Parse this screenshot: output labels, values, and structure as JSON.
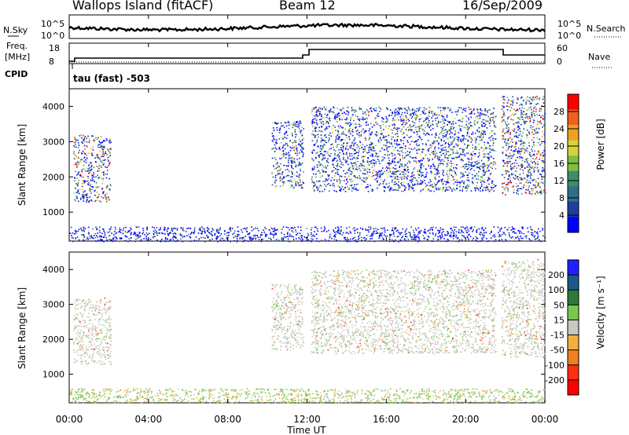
{
  "header": {
    "station": "Wallops Island (fitACF)",
    "beam": "Beam 12",
    "date": "16/Sep/2009"
  },
  "noise_panel": {
    "left_label": "N.Sky",
    "right_label": "N.Search",
    "y_ticks": [
      "10^5",
      "10^0"
    ],
    "right_ticks": [
      "10^5",
      "10^0"
    ]
  },
  "freq_panel": {
    "left_label": "Freq.",
    "left_unit": "[MHz]",
    "left_ticks": [
      "18",
      "8"
    ],
    "right_label": "Nave",
    "right_ticks": [
      "60",
      "0"
    ],
    "cpid_label": "CPID",
    "program": "tau (fast) -503"
  },
  "colors": {
    "power_scale": [
      "#0000ff",
      "#1c3fa0",
      "#2f6f8a",
      "#3a8f6a",
      "#7fbf3f",
      "#d7d23a",
      "#f0a020",
      "#f06020",
      "#ff0000"
    ],
    "velocity_scale": [
      "#2020ff",
      "#1a5a8a",
      "#2e7a3a",
      "#78c850",
      "#c8c8c0",
      "#f0b040",
      "#f08020",
      "#ff3010",
      "#ff0000"
    ]
  },
  "chart_data": [
    {
      "type": "heatmap",
      "title": "",
      "quantity": "Power",
      "xlabel": "Time UT",
      "ylabel": "Slant Range [km]",
      "xlim": [
        "00:00",
        "24:00"
      ],
      "ylim": [
        180,
        4500
      ],
      "yticks": [
        1000,
        2000,
        3000,
        4000
      ],
      "colorbar": {
        "label": "Power [dB]",
        "range": [
          0,
          32
        ],
        "ticks": [
          "4",
          "8",
          "12",
          "16",
          "20",
          "24",
          "28"
        ]
      },
      "echo_regions": [
        {
          "t_start": 0.2,
          "t_end": 2.1,
          "range_min": 1300,
          "range_max": 3200,
          "peak_power_db": 28
        },
        {
          "t_start": 10.2,
          "t_end": 11.8,
          "range_min": 1700,
          "range_max": 3600,
          "peak_power_db": 20
        },
        {
          "t_start": 12.2,
          "t_end": 21.5,
          "range_min": 1600,
          "range_max": 4000,
          "peak_power_db": 20
        },
        {
          "t_start": 21.8,
          "t_end": 24.0,
          "range_min": 1500,
          "range_max": 4300,
          "peak_power_db": 28
        },
        {
          "t_start": 0.0,
          "t_end": 24.0,
          "range_min": 180,
          "range_max": 600,
          "peak_power_db": 8
        }
      ]
    },
    {
      "type": "heatmap",
      "title": "",
      "quantity": "Velocity",
      "xlabel": "Time UT",
      "ylabel": "Slant Range [km]",
      "xlim": [
        "00:00",
        "24:00"
      ],
      "ylim": [
        180,
        4500
      ],
      "yticks": [
        1000,
        2000,
        3000,
        4000
      ],
      "xticks": [
        "00:00",
        "04:00",
        "08:00",
        "12:00",
        "16:00",
        "20:00",
        "00:00"
      ],
      "colorbar": {
        "label": "Velocity [m s⁻¹]",
        "ticks": [
          "200",
          "100",
          "50",
          "15",
          "-15",
          "-50",
          "-100",
          "-200"
        ]
      },
      "echo_regions": [
        {
          "t_start": 0.2,
          "t_end": 2.1,
          "range_min": 1300,
          "range_max": 3200,
          "typical_velocity": 0
        },
        {
          "t_start": 10.2,
          "t_end": 11.8,
          "range_min": 1700,
          "range_max": 3600,
          "typical_velocity": 0
        },
        {
          "t_start": 12.2,
          "t_end": 21.5,
          "range_min": 1600,
          "range_max": 4000,
          "typical_velocity": 0
        },
        {
          "t_start": 21.8,
          "t_end": 24.0,
          "range_min": 1500,
          "range_max": 4300,
          "typical_velocity": 0
        },
        {
          "t_start": 0.0,
          "t_end": 24.0,
          "range_min": 180,
          "range_max": 600,
          "typical_velocity": 40
        }
      ]
    }
  ]
}
